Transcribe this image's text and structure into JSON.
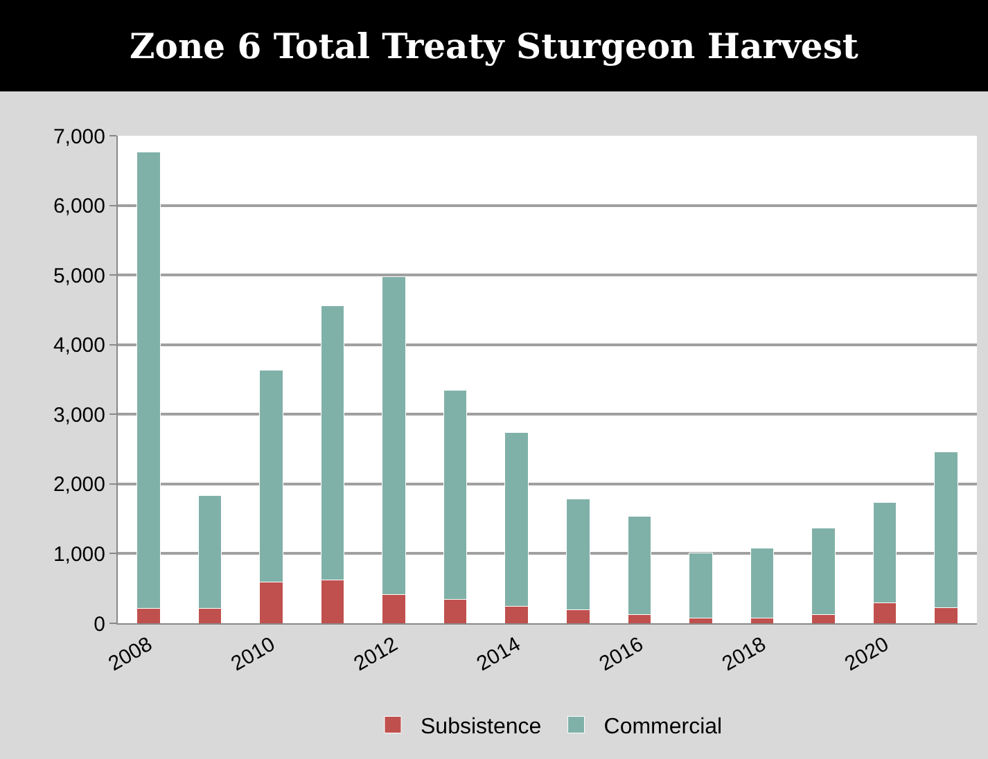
{
  "chart_data": {
    "type": "bar",
    "title": "Zone 6 Total Treaty Sturgeon Harvest",
    "stacked": true,
    "categories": [
      "2008",
      null,
      "2010",
      null,
      "2012",
      null,
      "2014",
      null,
      "2016",
      null,
      "2018",
      null,
      "2020",
      null
    ],
    "series": [
      {
        "name": "Subsistence",
        "color": "#c0504d",
        "values": [
          210,
          210,
          590,
          620,
          410,
          340,
          240,
          190,
          120,
          70,
          70,
          120,
          290,
          220
        ]
      },
      {
        "name": "Commercial",
        "color": "#80b1a8",
        "values": [
          6560,
          1620,
          3040,
          3940,
          4570,
          3010,
          2500,
          1590,
          1420,
          940,
          1010,
          1250,
          1450,
          2240
        ]
      }
    ],
    "ylim": [
      0,
      7000
    ],
    "yticks": [
      {
        "value": 0,
        "label": "0"
      },
      {
        "value": 1000,
        "label": "1,000"
      },
      {
        "value": 2000,
        "label": "2,000"
      },
      {
        "value": 3000,
        "label": "3,000"
      },
      {
        "value": 4000,
        "label": "4,000"
      },
      {
        "value": 5000,
        "label": "5,000"
      },
      {
        "value": 6000,
        "label": "6,000"
      },
      {
        "value": 7000,
        "label": "7,000"
      }
    ],
    "grid": "y",
    "legend": "bottom"
  }
}
